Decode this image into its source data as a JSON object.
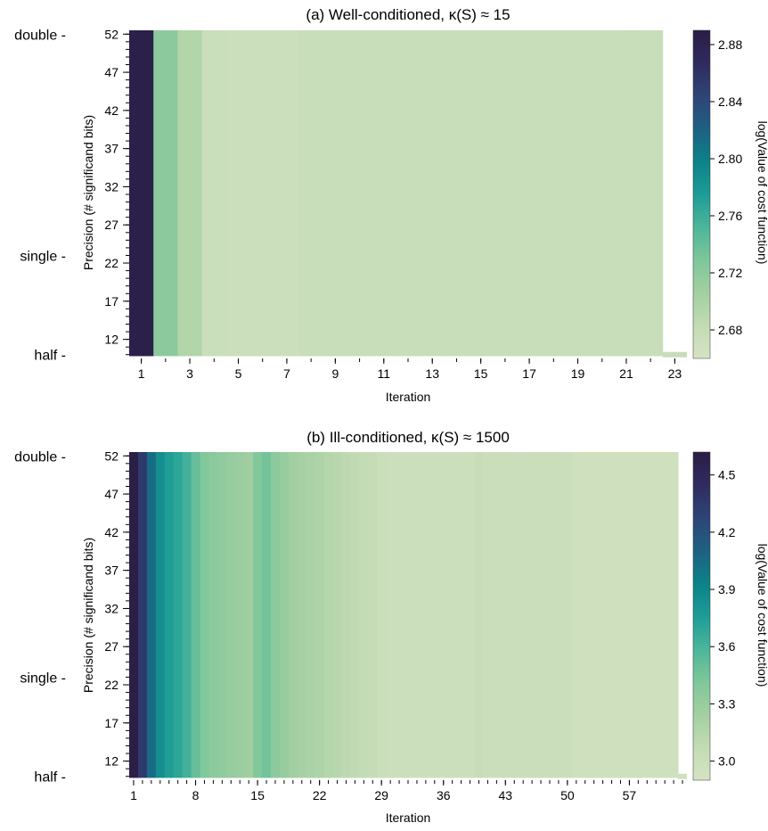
{
  "figure": {
    "background": "#ffffff",
    "colormap": [
      "#d5e3c4",
      "#c3dbb4",
      "#a3cfa1",
      "#7ec79a",
      "#4cb59a",
      "#1d9c96",
      "#0b8288",
      "#1e6082",
      "#2e4476",
      "#2f2b5e",
      "#2a1d45"
    ]
  },
  "chart_data": [
    {
      "type": "heatmap",
      "title": "(a) Well-conditioned, κ(S) ≈ 15",
      "xlabel": "Iteration",
      "ylabel": "Precision (# significand bits)",
      "colorbar_label": "log(Value of cost function)",
      "x_range": [
        1,
        23
      ],
      "x_ticks": [
        "1",
        "3",
        "5",
        "7",
        "9",
        "11",
        "13",
        "15",
        "17",
        "19",
        "21",
        "23"
      ],
      "y_range": [
        10,
        52
      ],
      "y_ticks": [
        "52",
        "47",
        "42",
        "37",
        "32",
        "27",
        "22",
        "17",
        "12"
      ],
      "precision_labels": [
        {
          "text": "double",
          "bits": 52
        },
        {
          "text": "single",
          "bits": 23
        },
        {
          "text": "half",
          "bits": 10
        }
      ],
      "colorbar_range": [
        2.66,
        2.89
      ],
      "colorbar_ticks": [
        "2.88",
        "2.84",
        "2.80",
        "2.76",
        "2.72",
        "2.68"
      ],
      "column_values": [
        2.885,
        2.72,
        2.695,
        2.675,
        2.672,
        2.672,
        2.672,
        2.676,
        2.676,
        2.676,
        2.676,
        2.676,
        2.676,
        2.676,
        2.676,
        2.676,
        2.676,
        2.676,
        2.676,
        2.676,
        2.676,
        2.676,
        2.676
      ],
      "grid": false
    },
    {
      "type": "heatmap",
      "title": "(b) Ill-conditioned, κ(S) ≈ 1500",
      "xlabel": "Iteration",
      "ylabel": "Precision (# significand bits)",
      "colorbar_label": "log(Value of cost function)",
      "x_range": [
        1,
        63
      ],
      "x_ticks": [
        "1",
        "8",
        "15",
        "22",
        "29",
        "36",
        "43",
        "50",
        "57"
      ],
      "y_range": [
        10,
        52
      ],
      "y_ticks": [
        "52",
        "47",
        "42",
        "37",
        "32",
        "27",
        "22",
        "17",
        "12"
      ],
      "precision_labels": [
        {
          "text": "double",
          "bits": 52
        },
        {
          "text": "single",
          "bits": 23
        },
        {
          "text": "half",
          "bits": 10
        }
      ],
      "colorbar_range": [
        2.9,
        4.62
      ],
      "colorbar_ticks": [
        "4.5",
        "4.2",
        "3.9",
        "3.6",
        "3.3",
        "3.0"
      ],
      "column_values": [
        4.6,
        4.35,
        4.05,
        3.85,
        3.75,
        3.7,
        3.62,
        3.5,
        3.4,
        3.35,
        3.33,
        3.3,
        3.28,
        3.26,
        3.4,
        3.45,
        3.35,
        3.3,
        3.25,
        3.22,
        3.2,
        3.18,
        3.15,
        3.13,
        3.1,
        3.08,
        3.06,
        3.04,
        3.0,
        2.99,
        2.99,
        2.99,
        2.99,
        2.99,
        2.99,
        2.99,
        2.99,
        2.99,
        2.99,
        3.03,
        3.0,
        3.0,
        3.0,
        3.0,
        3.0,
        3.0,
        3.0,
        3.0,
        3.0,
        3.0,
        2.96,
        2.96,
        2.96,
        2.96,
        2.96,
        2.96,
        2.96,
        2.96,
        2.96,
        2.96,
        2.96,
        2.96,
        2.96
      ],
      "grid": false
    }
  ]
}
